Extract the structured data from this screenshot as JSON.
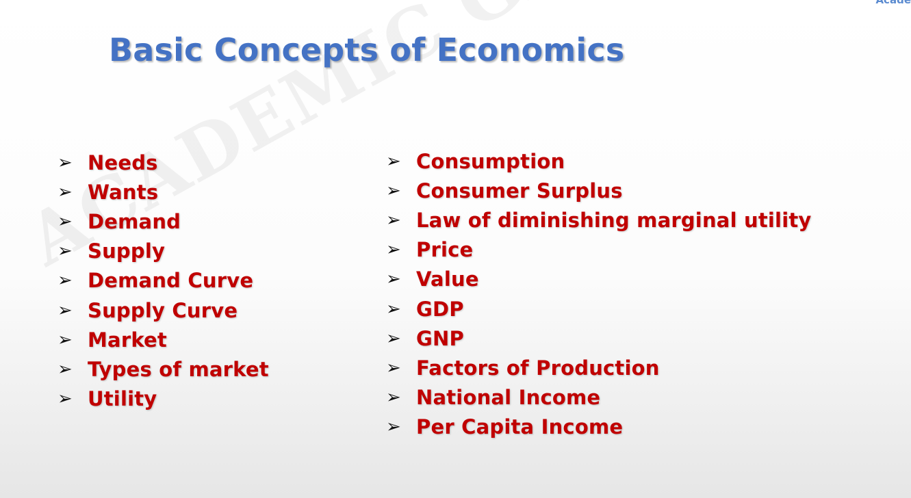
{
  "slide": {
    "title": "Basic Concepts of Economics",
    "watermark": "ACADEMIC GAIN TUTORIALS",
    "corner_text": "Acade",
    "bullet_glyph": "➢",
    "colors": {
      "title": "#4472c4",
      "items": "#c00000",
      "bullet": "#111111"
    },
    "left_column": [
      {
        "label": "Needs"
      },
      {
        "label": "Wants"
      },
      {
        "label": "Demand"
      },
      {
        "label": "Supply"
      },
      {
        "label": "Demand Curve"
      },
      {
        "label": "Supply Curve"
      },
      {
        "label": "Market"
      },
      {
        "label": "Types of market"
      },
      {
        "label": "Utility"
      }
    ],
    "right_column": [
      {
        "label": "Consumption"
      },
      {
        "label": "Consumer Surplus"
      },
      {
        "label": "Law of diminishing marginal utility"
      },
      {
        "label": "Price"
      },
      {
        "label": "Value"
      },
      {
        "label": "GDP"
      },
      {
        "label": "GNP"
      },
      {
        "label": "Factors of Production"
      },
      {
        "label": "National Income"
      },
      {
        "label": "Per Capita Income"
      }
    ]
  }
}
